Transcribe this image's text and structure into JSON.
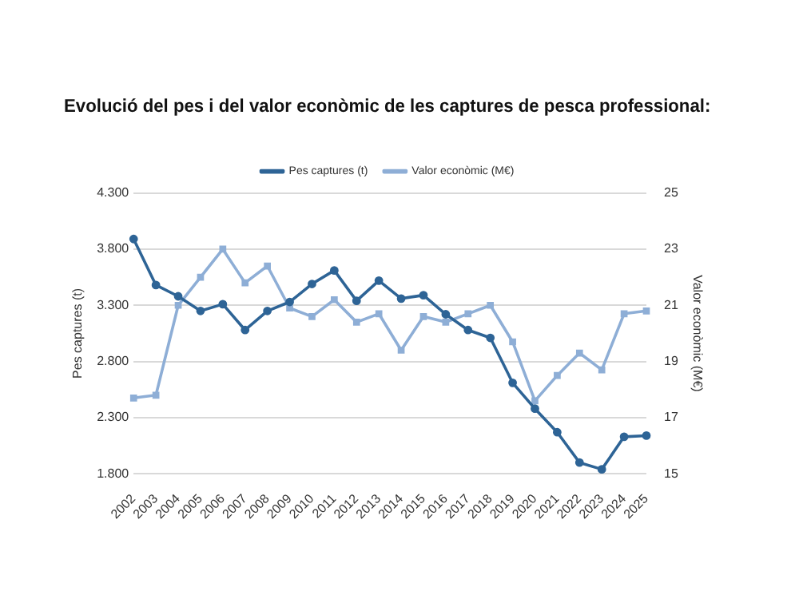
{
  "chart_data": {
    "type": "line",
    "title": "Evolució del pes i del valor econòmic de les captures de pesca professional:",
    "ylabel": "Pes captures (t)",
    "y2label": "Valor econòmic (M€)",
    "categories": [
      "2002",
      "2003",
      "2004",
      "2005",
      "2006",
      "2007",
      "2008",
      "2009",
      "2010",
      "2011",
      "2012",
      "2013",
      "2014",
      "2015",
      "2016",
      "2017",
      "2018",
      "2019",
      "2020",
      "2021",
      "2022",
      "2023",
      "2024",
      "2025"
    ],
    "series": [
      {
        "name": "Pes captures (t)",
        "color": "#2e6496",
        "marker": "circle",
        "values": [
          3890,
          3480,
          3380,
          3250,
          3310,
          3080,
          3250,
          3330,
          3490,
          3610,
          3340,
          3520,
          3360,
          3390,
          3220,
          3080,
          3010,
          2610,
          2380,
          2170,
          1900,
          1840,
          2130,
          2140
        ]
      },
      {
        "name": "Valor econòmic (M€)",
        "color": "#8eaed6",
        "marker": "square",
        "axis": "y2",
        "values": [
          17.7,
          17.8,
          21.0,
          22.0,
          23.0,
          21.8,
          22.4,
          20.9,
          20.6,
          21.2,
          20.4,
          20.7,
          19.4,
          20.6,
          20.4,
          20.7,
          21.0,
          19.7,
          17.6,
          18.5,
          19.3,
          18.7,
          20.7,
          20.8
        ]
      }
    ],
    "ylim": [
      1800,
      4300
    ],
    "yticks": [
      {
        "value": 1800,
        "label": "1.800"
      },
      {
        "value": 2300,
        "label": "2.300"
      },
      {
        "value": 2800,
        "label": "2.800"
      },
      {
        "value": 3300,
        "label": "3.300"
      },
      {
        "value": 3800,
        "label": "3.800"
      },
      {
        "value": 4300,
        "label": "4.300"
      }
    ],
    "y2lim": [
      15,
      25
    ],
    "y2ticks": [
      15,
      17,
      19,
      21,
      23,
      25
    ],
    "grid": "y",
    "legend": "top",
    "line_style": "solid"
  }
}
